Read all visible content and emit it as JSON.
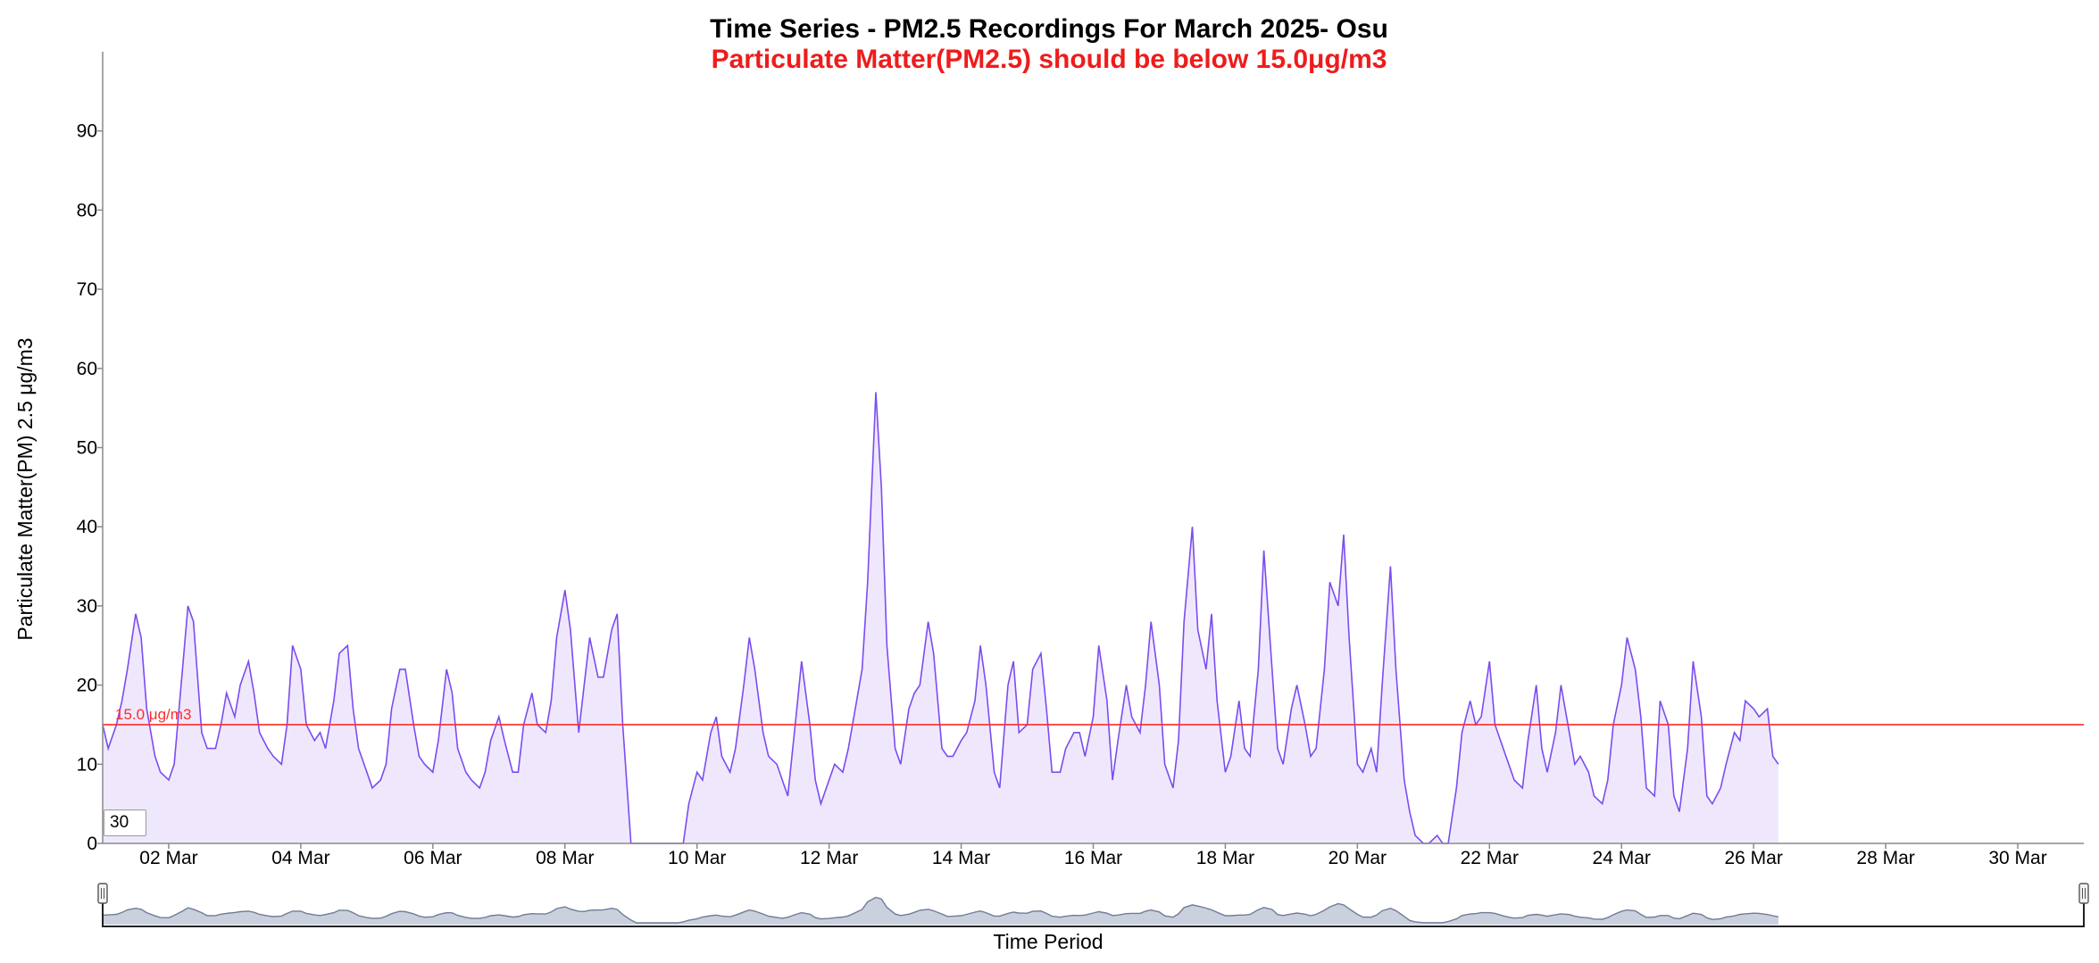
{
  "chart_data": {
    "type": "area",
    "title": "Time Series - PM2.5 Recordings For March 2025- Osu",
    "subtitle": "Particulate Matter(PM2.5) should be below 15.0μg/m3",
    "xlabel": "Time Period",
    "ylabel": "Particulate Matter(PM) 2.5 μg/m3",
    "x_range": [
      "2025-03-01",
      "2025-03-31"
    ],
    "ylim": [
      0,
      100
    ],
    "y_ticks": [
      0,
      10,
      20,
      30,
      40,
      50,
      60,
      70,
      80,
      90
    ],
    "x_tick_labels": [
      "02 Mar",
      "04 Mar",
      "06 Mar",
      "08 Mar",
      "10 Mar",
      "12 Mar",
      "14 Mar",
      "16 Mar",
      "18 Mar",
      "20 Mar",
      "22 Mar",
      "24 Mar",
      "26 Mar",
      "28 Mar",
      "30 Mar"
    ],
    "x_tick_dates": [
      "2025-03-02",
      "2025-03-04",
      "2025-03-06",
      "2025-03-08",
      "2025-03-10",
      "2025-03-12",
      "2025-03-14",
      "2025-03-16",
      "2025-03-18",
      "2025-03-20",
      "2025-03-22",
      "2025-03-24",
      "2025-03-26",
      "2025-03-28",
      "2025-03-30"
    ],
    "grid": false,
    "threshold": {
      "value": 15.0,
      "label": "15.0 μg/m3",
      "color": "#ff2a2a"
    },
    "colors": {
      "line": "#7b4cf0",
      "fill": "#efe8fd",
      "subtitle": "#ee1c1c",
      "navigator_line": "#6f7d96",
      "navigator_fill": "#b8c0d2"
    },
    "series": [
      {
        "values": [
          [
            "2025-03-01 00:00",
            15
          ],
          [
            "2025-03-01 02:00",
            12
          ],
          [
            "2025-03-01 05:00",
            15
          ],
          [
            "2025-03-01 07:00",
            18
          ],
          [
            "2025-03-01 09:00",
            22
          ],
          [
            "2025-03-01 12:00",
            29
          ],
          [
            "2025-03-01 14:00",
            26
          ],
          [
            "2025-03-01 16:00",
            17
          ],
          [
            "2025-03-01 19:00",
            11
          ],
          [
            "2025-03-01 21:00",
            9
          ],
          [
            "2025-03-02 00:00",
            8
          ],
          [
            "2025-03-02 02:00",
            10
          ],
          [
            "2025-03-02 05:00",
            22
          ],
          [
            "2025-03-02 07:00",
            30
          ],
          [
            "2025-03-02 09:00",
            28
          ],
          [
            "2025-03-02 12:00",
            14
          ],
          [
            "2025-03-02 14:00",
            12
          ],
          [
            "2025-03-02 17:00",
            12
          ],
          [
            "2025-03-02 19:00",
            15
          ],
          [
            "2025-03-02 21:00",
            19
          ],
          [
            "2025-03-03 00:00",
            16
          ],
          [
            "2025-03-03 02:00",
            20
          ],
          [
            "2025-03-03 05:00",
            23
          ],
          [
            "2025-03-03 07:00",
            19
          ],
          [
            "2025-03-03 09:00",
            14
          ],
          [
            "2025-03-03 12:00",
            12
          ],
          [
            "2025-03-03 14:00",
            11
          ],
          [
            "2025-03-03 17:00",
            10
          ],
          [
            "2025-03-03 19:00",
            15
          ],
          [
            "2025-03-03 21:00",
            25
          ],
          [
            "2025-03-04 00:00",
            22
          ],
          [
            "2025-03-04 02:00",
            15
          ],
          [
            "2025-03-04 05:00",
            13
          ],
          [
            "2025-03-04 07:00",
            14
          ],
          [
            "2025-03-04 09:00",
            12
          ],
          [
            "2025-03-04 12:00",
            18
          ],
          [
            "2025-03-04 14:00",
            24
          ],
          [
            "2025-03-04 17:00",
            25
          ],
          [
            "2025-03-04 19:00",
            17
          ],
          [
            "2025-03-04 21:00",
            12
          ],
          [
            "2025-03-05 00:00",
            9
          ],
          [
            "2025-03-05 02:00",
            7
          ],
          [
            "2025-03-05 05:00",
            8
          ],
          [
            "2025-03-05 07:00",
            10
          ],
          [
            "2025-03-05 09:00",
            17
          ],
          [
            "2025-03-05 12:00",
            22
          ],
          [
            "2025-03-05 14:00",
            22
          ],
          [
            "2025-03-05 17:00",
            15
          ],
          [
            "2025-03-05 19:00",
            11
          ],
          [
            "2025-03-05 21:00",
            10
          ],
          [
            "2025-03-06 00:00",
            9
          ],
          [
            "2025-03-06 02:00",
            13
          ],
          [
            "2025-03-06 05:00",
            22
          ],
          [
            "2025-03-06 07:00",
            19
          ],
          [
            "2025-03-06 09:00",
            12
          ],
          [
            "2025-03-06 12:00",
            9
          ],
          [
            "2025-03-06 14:00",
            8
          ],
          [
            "2025-03-06 17:00",
            7
          ],
          [
            "2025-03-06 19:00",
            9
          ],
          [
            "2025-03-06 21:00",
            13
          ],
          [
            "2025-03-07 00:00",
            16
          ],
          [
            "2025-03-07 02:00",
            13
          ],
          [
            "2025-03-07 05:00",
            9
          ],
          [
            "2025-03-07 07:00",
            9
          ],
          [
            "2025-03-07 09:00",
            15
          ],
          [
            "2025-03-07 12:00",
            19
          ],
          [
            "2025-03-07 14:00",
            15
          ],
          [
            "2025-03-07 17:00",
            14
          ],
          [
            "2025-03-07 19:00",
            18
          ],
          [
            "2025-03-07 21:00",
            26
          ],
          [
            "2025-03-08 00:00",
            32
          ],
          [
            "2025-03-08 02:00",
            27
          ],
          [
            "2025-03-08 05:00",
            14
          ],
          [
            "2025-03-08 07:00",
            20
          ],
          [
            "2025-03-08 09:00",
            26
          ],
          [
            "2025-03-08 12:00",
            21
          ],
          [
            "2025-03-08 14:00",
            21
          ],
          [
            "2025-03-08 17:00",
            27
          ],
          [
            "2025-03-08 19:00",
            29
          ],
          [
            "2025-03-08 21:00",
            15
          ],
          [
            "2025-03-09 00:00",
            0
          ],
          [
            "2025-03-09 02:00",
            0
          ],
          [
            "2025-03-09 05:00",
            0
          ],
          [
            "2025-03-09 07:00",
            0
          ],
          [
            "2025-03-09 09:00",
            0
          ],
          [
            "2025-03-09 12:00",
            0
          ],
          [
            "2025-03-09 14:00",
            0
          ],
          [
            "2025-03-09 17:00",
            0
          ],
          [
            "2025-03-09 19:00",
            0
          ],
          [
            "2025-03-09 21:00",
            5
          ],
          [
            "2025-03-10 00:00",
            9
          ],
          [
            "2025-03-10 02:00",
            8
          ],
          [
            "2025-03-10 05:00",
            14
          ],
          [
            "2025-03-10 07:00",
            16
          ],
          [
            "2025-03-10 09:00",
            11
          ],
          [
            "2025-03-10 12:00",
            9
          ],
          [
            "2025-03-10 14:00",
            12
          ],
          [
            "2025-03-10 17:00",
            20
          ],
          [
            "2025-03-10 19:00",
            26
          ],
          [
            "2025-03-10 21:00",
            22
          ],
          [
            "2025-03-11 00:00",
            14
          ],
          [
            "2025-03-11 02:00",
            11
          ],
          [
            "2025-03-11 05:00",
            10
          ],
          [
            "2025-03-11 07:00",
            8
          ],
          [
            "2025-03-11 09:00",
            6
          ],
          [
            "2025-03-11 12:00",
            16
          ],
          [
            "2025-03-11 14:00",
            23
          ],
          [
            "2025-03-11 17:00",
            15
          ],
          [
            "2025-03-11 19:00",
            8
          ],
          [
            "2025-03-11 21:00",
            5
          ],
          [
            "2025-03-12 00:00",
            8
          ],
          [
            "2025-03-12 02:00",
            10
          ],
          [
            "2025-03-12 05:00",
            9
          ],
          [
            "2025-03-12 07:00",
            12
          ],
          [
            "2025-03-12 09:00",
            16
          ],
          [
            "2025-03-12 12:00",
            22
          ],
          [
            "2025-03-12 14:00",
            33
          ],
          [
            "2025-03-12 17:00",
            57
          ],
          [
            "2025-03-12 19:00",
            45
          ],
          [
            "2025-03-12 21:00",
            25
          ],
          [
            "2025-03-13 00:00",
            12
          ],
          [
            "2025-03-13 02:00",
            10
          ],
          [
            "2025-03-13 05:00",
            17
          ],
          [
            "2025-03-13 07:00",
            19
          ],
          [
            "2025-03-13 09:00",
            20
          ],
          [
            "2025-03-13 12:00",
            28
          ],
          [
            "2025-03-13 14:00",
            24
          ],
          [
            "2025-03-13 17:00",
            12
          ],
          [
            "2025-03-13 19:00",
            11
          ],
          [
            "2025-03-13 21:00",
            11
          ],
          [
            "2025-03-14 00:00",
            13
          ],
          [
            "2025-03-14 02:00",
            14
          ],
          [
            "2025-03-14 05:00",
            18
          ],
          [
            "2025-03-14 07:00",
            25
          ],
          [
            "2025-03-14 09:00",
            20
          ],
          [
            "2025-03-14 12:00",
            9
          ],
          [
            "2025-03-14 14:00",
            7
          ],
          [
            "2025-03-14 17:00",
            20
          ],
          [
            "2025-03-14 19:00",
            23
          ],
          [
            "2025-03-14 21:00",
            14
          ],
          [
            "2025-03-15 00:00",
            15
          ],
          [
            "2025-03-15 02:00",
            22
          ],
          [
            "2025-03-15 05:00",
            24
          ],
          [
            "2025-03-15 07:00",
            17
          ],
          [
            "2025-03-15 09:00",
            9
          ],
          [
            "2025-03-15 12:00",
            9
          ],
          [
            "2025-03-15 14:00",
            12
          ],
          [
            "2025-03-15 17:00",
            14
          ],
          [
            "2025-03-15 19:00",
            14
          ],
          [
            "2025-03-15 21:00",
            11
          ],
          [
            "2025-03-16 00:00",
            16
          ],
          [
            "2025-03-16 02:00",
            25
          ],
          [
            "2025-03-16 05:00",
            18
          ],
          [
            "2025-03-16 07:00",
            8
          ],
          [
            "2025-03-16 09:00",
            13
          ],
          [
            "2025-03-16 12:00",
            20
          ],
          [
            "2025-03-16 14:00",
            16
          ],
          [
            "2025-03-16 17:00",
            14
          ],
          [
            "2025-03-16 19:00",
            20
          ],
          [
            "2025-03-16 21:00",
            28
          ],
          [
            "2025-03-17 00:00",
            20
          ],
          [
            "2025-03-17 02:00",
            10
          ],
          [
            "2025-03-17 05:00",
            7
          ],
          [
            "2025-03-17 07:00",
            13
          ],
          [
            "2025-03-17 09:00",
            28
          ],
          [
            "2025-03-17 12:00",
            40
          ],
          [
            "2025-03-17 14:00",
            27
          ],
          [
            "2025-03-17 17:00",
            22
          ],
          [
            "2025-03-17 19:00",
            29
          ],
          [
            "2025-03-17 21:00",
            18
          ],
          [
            "2025-03-18 00:00",
            9
          ],
          [
            "2025-03-18 02:00",
            11
          ],
          [
            "2025-03-18 05:00",
            18
          ],
          [
            "2025-03-18 07:00",
            12
          ],
          [
            "2025-03-18 09:00",
            11
          ],
          [
            "2025-03-18 12:00",
            22
          ],
          [
            "2025-03-18 14:00",
            37
          ],
          [
            "2025-03-18 17:00",
            22
          ],
          [
            "2025-03-18 19:00",
            12
          ],
          [
            "2025-03-18 21:00",
            10
          ],
          [
            "2025-03-19 00:00",
            17
          ],
          [
            "2025-03-19 02:00",
            20
          ],
          [
            "2025-03-19 05:00",
            15
          ],
          [
            "2025-03-19 07:00",
            11
          ],
          [
            "2025-03-19 09:00",
            12
          ],
          [
            "2025-03-19 12:00",
            22
          ],
          [
            "2025-03-19 14:00",
            33
          ],
          [
            "2025-03-19 17:00",
            30
          ],
          [
            "2025-03-19 19:00",
            39
          ],
          [
            "2025-03-19 21:00",
            26
          ],
          [
            "2025-03-20 00:00",
            10
          ],
          [
            "2025-03-20 02:00",
            9
          ],
          [
            "2025-03-20 05:00",
            12
          ],
          [
            "2025-03-20 07:00",
            9
          ],
          [
            "2025-03-20 09:00",
            20
          ],
          [
            "2025-03-20 12:00",
            35
          ],
          [
            "2025-03-20 14:00",
            22
          ],
          [
            "2025-03-20 17:00",
            8
          ],
          [
            "2025-03-20 19:00",
            4
          ],
          [
            "2025-03-20 21:00",
            1
          ],
          [
            "2025-03-21 00:00",
            0
          ],
          [
            "2025-03-21 02:00",
            0
          ],
          [
            "2025-03-21 05:00",
            1
          ],
          [
            "2025-03-21 07:00",
            0
          ],
          [
            "2025-03-21 09:00",
            0
          ],
          [
            "2025-03-21 12:00",
            7
          ],
          [
            "2025-03-21 14:00",
            14
          ],
          [
            "2025-03-21 17:00",
            18
          ],
          [
            "2025-03-21 19:00",
            15
          ],
          [
            "2025-03-21 21:00",
            16
          ],
          [
            "2025-03-22 00:00",
            23
          ],
          [
            "2025-03-22 02:00",
            15
          ],
          [
            "2025-03-22 05:00",
            12
          ],
          [
            "2025-03-22 07:00",
            10
          ],
          [
            "2025-03-22 09:00",
            8
          ],
          [
            "2025-03-22 12:00",
            7
          ],
          [
            "2025-03-22 14:00",
            13
          ],
          [
            "2025-03-22 17:00",
            20
          ],
          [
            "2025-03-22 19:00",
            12
          ],
          [
            "2025-03-22 21:00",
            9
          ],
          [
            "2025-03-23 00:00",
            14
          ],
          [
            "2025-03-23 02:00",
            20
          ],
          [
            "2025-03-23 05:00",
            14
          ],
          [
            "2025-03-23 07:00",
            10
          ],
          [
            "2025-03-23 09:00",
            11
          ],
          [
            "2025-03-23 12:00",
            9
          ],
          [
            "2025-03-23 14:00",
            6
          ],
          [
            "2025-03-23 17:00",
            5
          ],
          [
            "2025-03-23 19:00",
            8
          ],
          [
            "2025-03-23 21:00",
            15
          ],
          [
            "2025-03-24 00:00",
            20
          ],
          [
            "2025-03-24 02:00",
            26
          ],
          [
            "2025-03-24 05:00",
            22
          ],
          [
            "2025-03-24 07:00",
            16
          ],
          [
            "2025-03-24 09:00",
            7
          ],
          [
            "2025-03-24 12:00",
            6
          ],
          [
            "2025-03-24 14:00",
            18
          ],
          [
            "2025-03-24 17:00",
            15
          ],
          [
            "2025-03-24 19:00",
            6
          ],
          [
            "2025-03-24 21:00",
            4
          ],
          [
            "2025-03-25 00:00",
            12
          ],
          [
            "2025-03-25 02:00",
            23
          ],
          [
            "2025-03-25 05:00",
            16
          ],
          [
            "2025-03-25 07:00",
            6
          ],
          [
            "2025-03-25 09:00",
            5
          ],
          [
            "2025-03-25 12:00",
            7
          ],
          [
            "2025-03-25 14:00",
            10
          ],
          [
            "2025-03-25 17:00",
            14
          ],
          [
            "2025-03-25 19:00",
            13
          ],
          [
            "2025-03-25 21:00",
            18
          ],
          [
            "2025-03-26 00:00",
            17
          ],
          [
            "2025-03-26 02:00",
            16
          ],
          [
            "2025-03-26 05:00",
            17
          ],
          [
            "2025-03-26 07:00",
            11
          ],
          [
            "2025-03-26 09:00",
            10
          ]
        ]
      }
    ]
  },
  "controls": {
    "window_value": "30"
  }
}
